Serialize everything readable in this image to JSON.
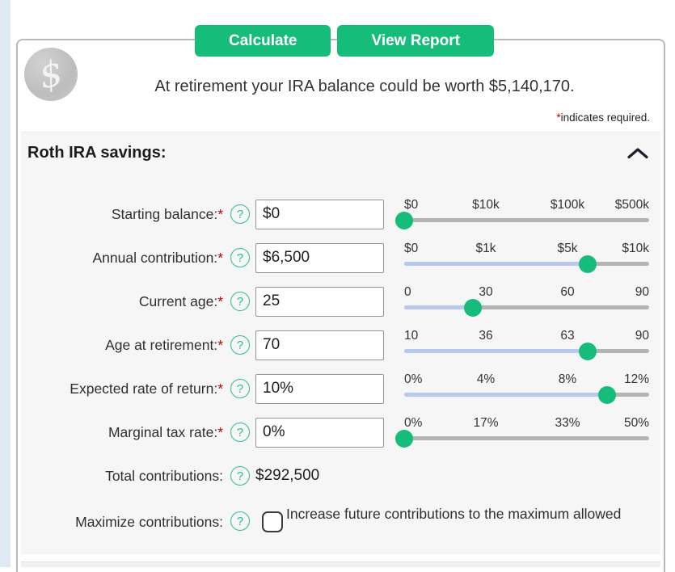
{
  "toolbar": {
    "calculate_label": "Calculate",
    "view_report_label": "View Report"
  },
  "logo": {
    "icon": "dollar-sign-logo",
    "glyph": "$"
  },
  "headline": "At retirement your IRA balance could be worth $5,140,170.",
  "required_note": {
    "mark": "*",
    "text": "indicates required."
  },
  "required_mark": "*",
  "help_glyph": "?",
  "section": {
    "title": "Roth IRA savings:",
    "collapse_icon": "chevron-up"
  },
  "fields": [
    {
      "label": "Starting balance:",
      "required": true,
      "value": "$0",
      "slider": {
        "labels": [
          "$0",
          "$10k",
          "$100k",
          "$500k"
        ],
        "percent": 0
      }
    },
    {
      "label": "Annual contribution:",
      "required": true,
      "value": "$6,500",
      "slider": {
        "labels": [
          "$0",
          "$1k",
          "$5k",
          "$10k"
        ],
        "percent": 75
      }
    },
    {
      "label": "Current age:",
      "required": true,
      "value": "25",
      "slider": {
        "labels": [
          "0",
          "30",
          "60",
          "90"
        ],
        "percent": 28
      }
    },
    {
      "label": "Age at retirement:",
      "required": true,
      "value": "70",
      "slider": {
        "labels": [
          "10",
          "36",
          "63",
          "90"
        ],
        "percent": 75
      }
    },
    {
      "label": "Expected rate of return:",
      "required": true,
      "value": "10%",
      "slider": {
        "labels": [
          "0%",
          "4%",
          "8%",
          "12%"
        ],
        "percent": 83
      }
    },
    {
      "label": "Marginal tax rate:",
      "required": true,
      "value": "0%",
      "slider": {
        "labels": [
          "0%",
          "17%",
          "33%",
          "50%"
        ],
        "percent": 0
      }
    }
  ],
  "total_contributions": {
    "label": "Total contributions:",
    "value": "$292,500"
  },
  "maximize": {
    "label": "Maximize contributions:",
    "description": "Increase future contributions to the maximum allowed",
    "checked": false
  },
  "colors": {
    "accent_green": "#16bd7a",
    "help_green": "#2abf8e",
    "slider_fill_blue": "#b9c9ee",
    "slider_track_gray": "#b4b4b4",
    "panel_gray": "#f6f6f7"
  }
}
